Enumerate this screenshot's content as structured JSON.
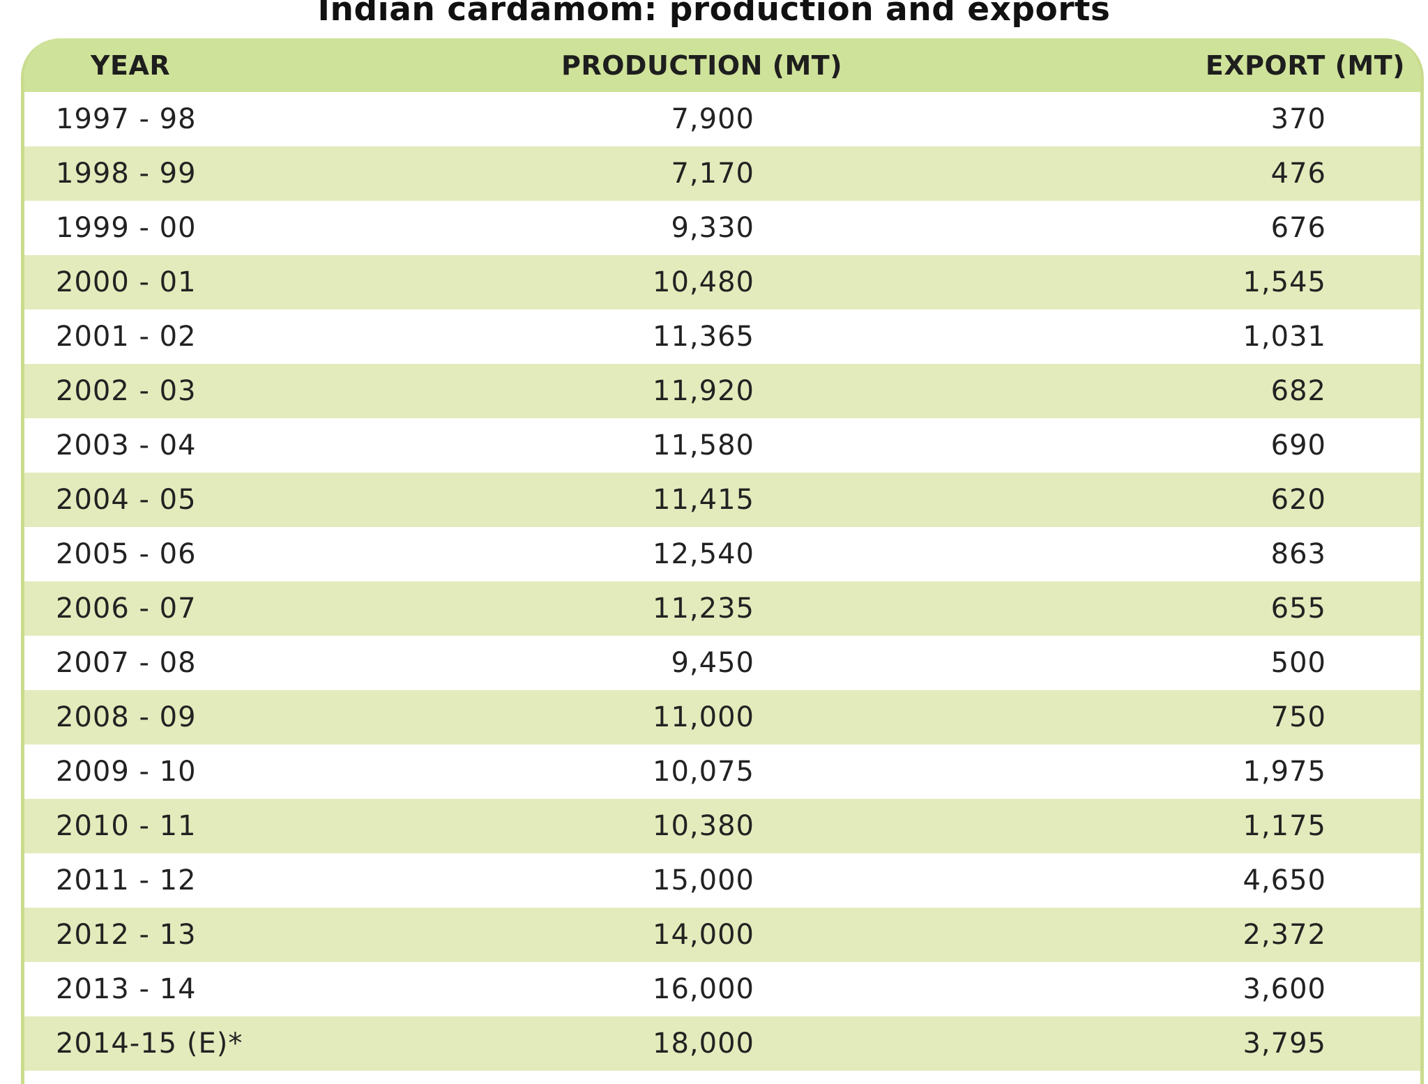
{
  "title": "Indian cardamom: production and exports",
  "chart_data": {
    "type": "table",
    "title": "Indian cardamom: production and exports",
    "columns": [
      "YEAR",
      "PRODUCTION (MT)",
      "EXPORT (MT)"
    ],
    "rows": [
      {
        "year": "1997 - 98",
        "production": "7,900",
        "export": "370"
      },
      {
        "year": "1998 - 99",
        "production": "7,170",
        "export": "476"
      },
      {
        "year": "1999 - 00",
        "production": "9,330",
        "export": "676"
      },
      {
        "year": "2000 - 01",
        "production": "10,480",
        "export": "1,545"
      },
      {
        "year": "2001 - 02",
        "production": "11,365",
        "export": "1,031"
      },
      {
        "year": "2002 - 03",
        "production": "11,920",
        "export": "682"
      },
      {
        "year": "2003 - 04",
        "production": "11,580",
        "export": "690"
      },
      {
        "year": "2004 - 05",
        "production": "11,415",
        "export": "620"
      },
      {
        "year": "2005 - 06",
        "production": "12,540",
        "export": "863"
      },
      {
        "year": "2006 - 07",
        "production": "11,235",
        "export": "655"
      },
      {
        "year": "2007 - 08",
        "production": "9,450",
        "export": "500"
      },
      {
        "year": "2008 - 09",
        "production": "11,000",
        "export": "750"
      },
      {
        "year": "2009 - 10",
        "production": "10,075",
        "export": "1,975"
      },
      {
        "year": "2010 - 11",
        "production": "10,380",
        "export": "1,175"
      },
      {
        "year": "2011 - 12",
        "production": "15,000",
        "export": "4,650"
      },
      {
        "year": "2012 - 13",
        "production": "14,000",
        "export": "2,372"
      },
      {
        "year": "2013 - 14",
        "production": "16,000",
        "export": "3,600"
      },
      {
        "year": "2014-15 (E)*",
        "production": "18,000",
        "export": "3,795"
      }
    ]
  },
  "colors": {
    "header_bg": "#cfe29a",
    "alt_row_bg": "#e3ebbc",
    "border": "#c9dc8e"
  }
}
